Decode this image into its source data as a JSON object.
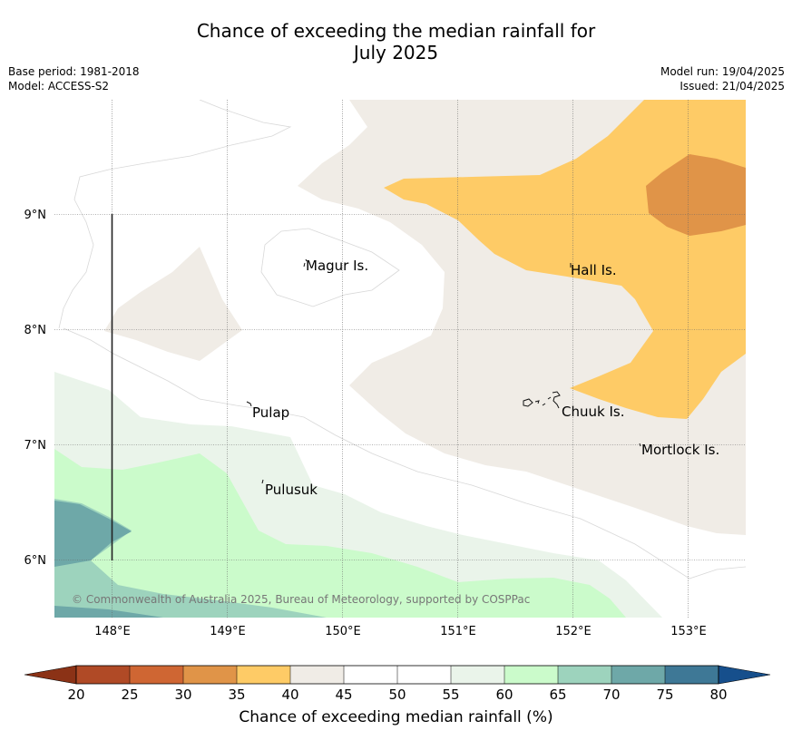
{
  "title_line1": "Chance of exceeding the median rainfall for",
  "title_line2": "July 2025",
  "meta_left": [
    "Base period: 1981-2018",
    "Model: ACCESS-S2"
  ],
  "meta_right": [
    "Model run: 19/04/2025",
    "Issued: 21/04/2025"
  ],
  "x_ticks": [
    "148°E",
    "149°E",
    "150°E",
    "151°E",
    "152°E",
    "153°E"
  ],
  "y_ticks": [
    "9°N",
    "8°N",
    "7°N",
    "6°N"
  ],
  "places": [
    "Magur Is.",
    "Hall Is.",
    "Pulap",
    "Chuuk Is.",
    "Mortlock Is.",
    "Pulusuk"
  ],
  "copyright": "© Commonwealth of Australia 2025, Bureau of Meteorology, supported by COSPPac",
  "colorbar": {
    "title": "Chance of exceeding median rainfall (%)",
    "ticks": [
      "20",
      "25",
      "30",
      "35",
      "40",
      "45",
      "50",
      "55",
      "60",
      "65",
      "70",
      "75",
      "80"
    ],
    "colors": [
      "#b04a26",
      "#cf6633",
      "#e09448",
      "#fecb66",
      "#f0ece6",
      "#ffffff",
      "#ffffff",
      "#eaf4ea",
      "#cbfbcb",
      "#9dd3bd",
      "#6ea8a8",
      "#3e7896"
    ],
    "under_color": "#8b3216",
    "over_color": "#164f8c"
  },
  "map_colors": {
    "c35_40": "#fecb66",
    "c30_35": "#e09448",
    "c40_45": "#f0ece6",
    "c55_60": "#eaf4ea",
    "c60_65": "#cbfbcb",
    "c65_70": "#9dd3bd",
    "c70_75": "#6ea8a8"
  }
}
